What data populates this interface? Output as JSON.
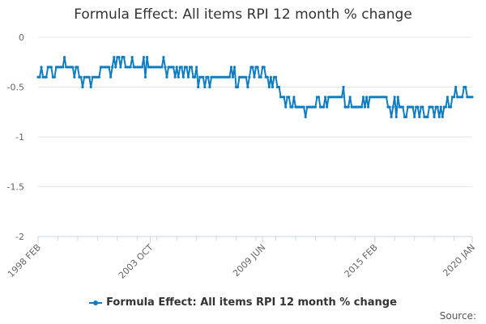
{
  "chart_data": {
    "type": "line",
    "title": "Formula Effect: All items RPI 12 month % change",
    "x_start": "1998 FEB",
    "x_end": "2020 JAN",
    "frequency": "monthly",
    "xticks": [
      {
        "label": "1998 FEB",
        "index": 0
      },
      {
        "label": "2003 OCT",
        "index": 68
      },
      {
        "label": "2009 JUN",
        "index": 136
      },
      {
        "label": "2015 FEB",
        "index": 204
      },
      {
        "label": "2020 JAN",
        "index": 263
      }
    ],
    "yticks": [
      "0",
      "-0.5",
      "-1",
      "-1.5",
      "-2"
    ],
    "ylim": [
      -2,
      0
    ],
    "grid": true,
    "legend_position": "bottom",
    "color": "#0f7dc2",
    "series": [
      {
        "name": "Formula Effect: All items RPI 12 month % change",
        "values": [
          -0.4,
          -0.4,
          -0.3,
          -0.4,
          -0.4,
          -0.4,
          -0.3,
          -0.3,
          -0.3,
          -0.4,
          -0.4,
          -0.3,
          -0.3,
          -0.3,
          -0.3,
          -0.3,
          -0.2,
          -0.3,
          -0.3,
          -0.3,
          -0.3,
          -0.3,
          -0.4,
          -0.3,
          -0.3,
          -0.4,
          -0.4,
          -0.5,
          -0.4,
          -0.4,
          -0.4,
          -0.4,
          -0.5,
          -0.4,
          -0.4,
          -0.4,
          -0.4,
          -0.4,
          -0.3,
          -0.3,
          -0.3,
          -0.3,
          -0.3,
          -0.3,
          -0.4,
          -0.3,
          -0.2,
          -0.3,
          -0.2,
          -0.2,
          -0.3,
          -0.2,
          -0.2,
          -0.3,
          -0.3,
          -0.3,
          -0.3,
          -0.2,
          -0.3,
          -0.3,
          -0.3,
          -0.3,
          -0.3,
          -0.3,
          -0.2,
          -0.4,
          -0.2,
          -0.3,
          -0.3,
          -0.3,
          -0.3,
          -0.3,
          -0.3,
          -0.3,
          -0.3,
          -0.3,
          -0.2,
          -0.3,
          -0.4,
          -0.3,
          -0.3,
          -0.3,
          -0.3,
          -0.4,
          -0.3,
          -0.4,
          -0.3,
          -0.3,
          -0.4,
          -0.3,
          -0.3,
          -0.4,
          -0.3,
          -0.3,
          -0.4,
          -0.4,
          -0.3,
          -0.5,
          -0.4,
          -0.4,
          -0.4,
          -0.5,
          -0.4,
          -0.4,
          -0.5,
          -0.4,
          -0.4,
          -0.4,
          -0.4,
          -0.4,
          -0.4,
          -0.4,
          -0.4,
          -0.4,
          -0.4,
          -0.4,
          -0.4,
          -0.3,
          -0.4,
          -0.3,
          -0.5,
          -0.5,
          -0.4,
          -0.4,
          -0.4,
          -0.4,
          -0.4,
          -0.5,
          -0.4,
          -0.3,
          -0.3,
          -0.4,
          -0.3,
          -0.3,
          -0.4,
          -0.4,
          -0.3,
          -0.3,
          -0.4,
          -0.4,
          -0.5,
          -0.4,
          -0.5,
          -0.4,
          -0.4,
          -0.5,
          -0.5,
          -0.6,
          -0.6,
          -0.6,
          -0.7,
          -0.6,
          -0.6,
          -0.7,
          -0.7,
          -0.6,
          -0.7,
          -0.7,
          -0.7,
          -0.7,
          -0.7,
          -0.7,
          -0.8,
          -0.7,
          -0.7,
          -0.7,
          -0.7,
          -0.7,
          -0.7,
          -0.6,
          -0.6,
          -0.7,
          -0.7,
          -0.7,
          -0.6,
          -0.7,
          -0.6,
          -0.6,
          -0.6,
          -0.6,
          -0.6,
          -0.6,
          -0.6,
          -0.6,
          -0.6,
          -0.5,
          -0.7,
          -0.7,
          -0.7,
          -0.6,
          -0.7,
          -0.7,
          -0.7,
          -0.7,
          -0.7,
          -0.7,
          -0.7,
          -0.6,
          -0.7,
          -0.6,
          -0.7,
          -0.6,
          -0.6,
          -0.6,
          -0.6,
          -0.6,
          -0.6,
          -0.6,
          -0.6,
          -0.6,
          -0.6,
          -0.6,
          -0.7,
          -0.7,
          -0.8,
          -0.7,
          -0.6,
          -0.8,
          -0.6,
          -0.7,
          -0.7,
          -0.7,
          -0.8,
          -0.8,
          -0.7,
          -0.7,
          -0.7,
          -0.7,
          -0.8,
          -0.7,
          -0.7,
          -0.8,
          -0.7,
          -0.7,
          -0.8,
          -0.8,
          -0.8,
          -0.7,
          -0.7,
          -0.7,
          -0.8,
          -0.7,
          -0.7,
          -0.8,
          -0.7,
          -0.8,
          -0.7,
          -0.7,
          -0.6,
          -0.7,
          -0.7,
          -0.6,
          -0.6,
          -0.5,
          -0.6,
          -0.6,
          -0.6,
          -0.6,
          -0.5,
          -0.5,
          -0.6,
          -0.6,
          -0.6,
          -0.6
        ]
      }
    ],
    "legend_label": "Formula Effect: All items RPI 12 month % change",
    "source_label": "Source:"
  }
}
